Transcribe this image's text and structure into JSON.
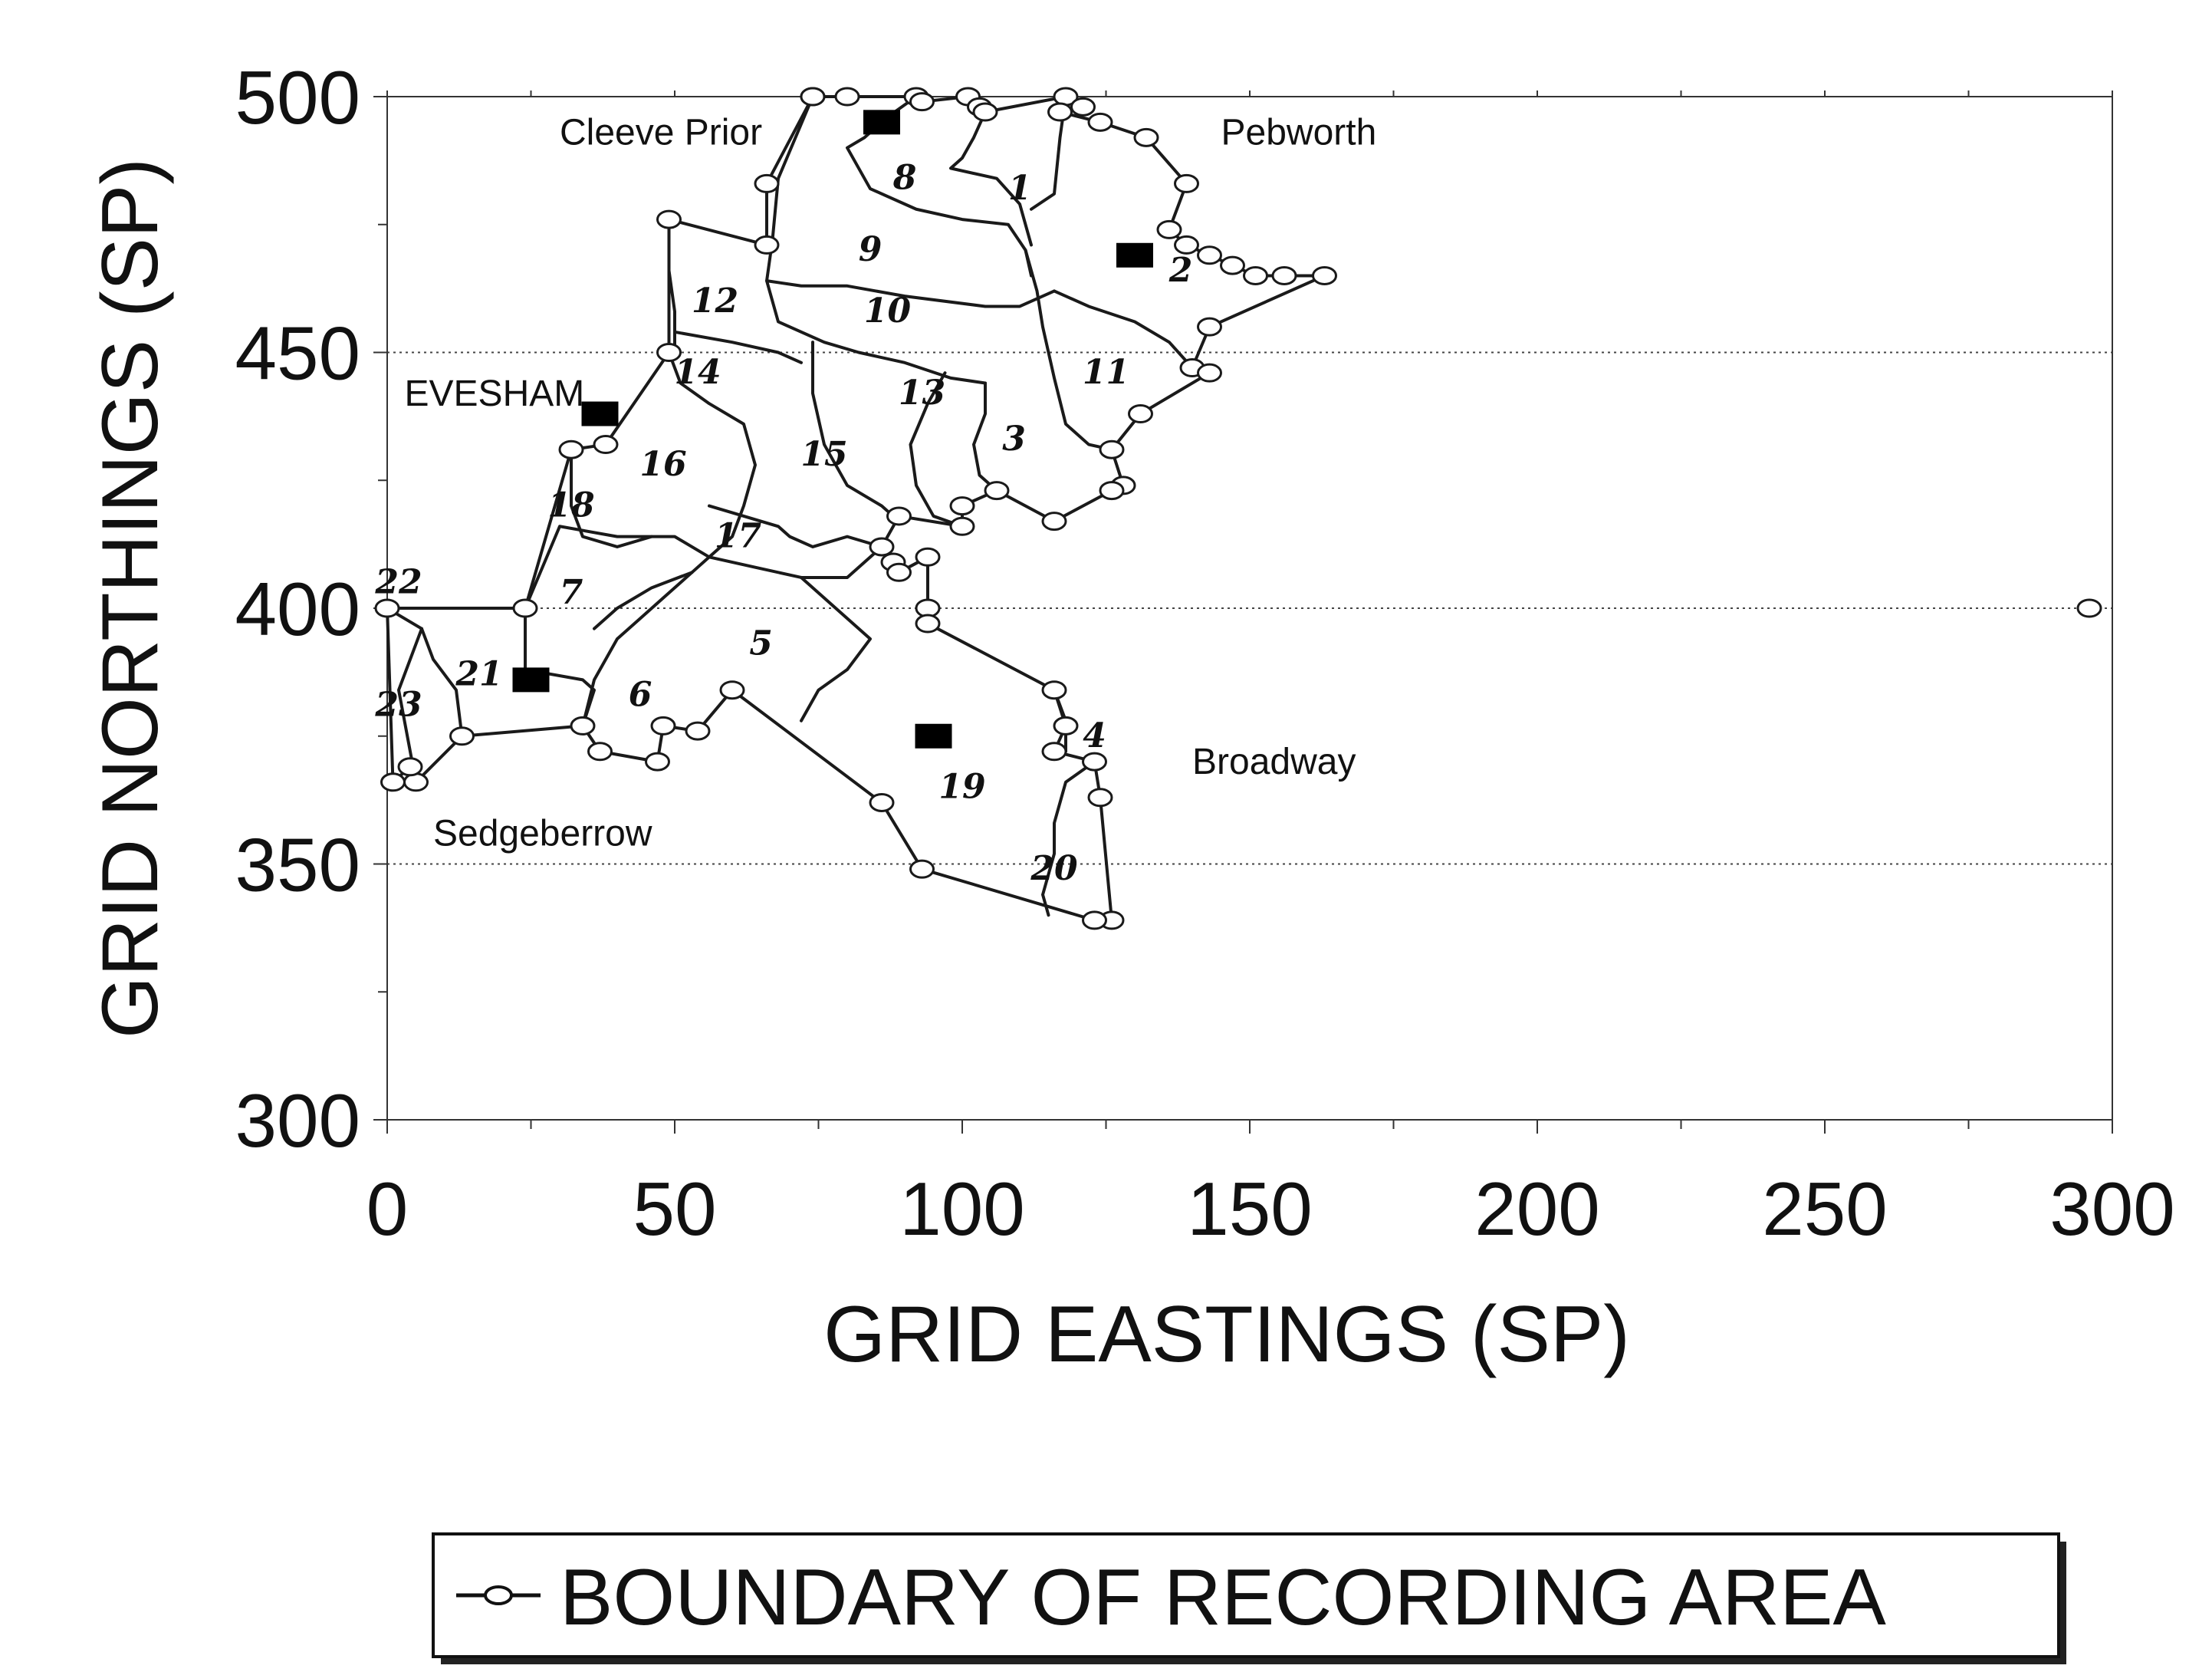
{
  "axes": {
    "x_title": "GRID EASTINGS (SP)",
    "y_title": "GRID NORTHINGS (SP)",
    "x_ticks": [
      "0",
      "50",
      "100",
      "150",
      "200",
      "250",
      "300"
    ],
    "y_ticks": [
      "300",
      "350",
      "400",
      "450",
      "500"
    ]
  },
  "place_labels": [
    {
      "name": "Cleeve Prior",
      "e": 30,
      "n": 493
    },
    {
      "name": "Pebworth",
      "e": 145,
      "n": 493
    },
    {
      "name": "EVESHAM",
      "e": 3,
      "n": 442
    },
    {
      "name": "Sedgeberrow",
      "e": 8,
      "n": 356
    },
    {
      "name": "Broadway",
      "e": 140,
      "n": 370
    }
  ],
  "area_labels": [
    {
      "text": "1",
      "e": 110,
      "n": 482
    },
    {
      "text": "2",
      "e": 138,
      "n": 466
    },
    {
      "text": "3",
      "e": 109,
      "n": 433
    },
    {
      "text": "4",
      "e": 123,
      "n": 375
    },
    {
      "text": "5",
      "e": 65,
      "n": 393
    },
    {
      "text": "6",
      "e": 44,
      "n": 383
    },
    {
      "text": "7",
      "e": 32,
      "n": 403
    },
    {
      "text": "8",
      "e": 90,
      "n": 484
    },
    {
      "text": "9",
      "e": 84,
      "n": 470
    },
    {
      "text": "10",
      "e": 87,
      "n": 458
    },
    {
      "text": "11",
      "e": 125,
      "n": 446
    },
    {
      "text": "12",
      "e": 57,
      "n": 460
    },
    {
      "text": "13",
      "e": 93,
      "n": 442
    },
    {
      "text": "14",
      "e": 54,
      "n": 446
    },
    {
      "text": "15",
      "e": 76,
      "n": 430
    },
    {
      "text": "16",
      "e": 48,
      "n": 428
    },
    {
      "text": "17",
      "e": 61,
      "n": 414
    },
    {
      "text": "18",
      "e": 32,
      "n": 420
    },
    {
      "text": "19",
      "e": 100,
      "n": 365
    },
    {
      "text": "20",
      "e": 116,
      "n": 349
    },
    {
      "text": "21",
      "e": 16,
      "n": 387
    },
    {
      "text": "22",
      "e": 2,
      "n": 405
    },
    {
      "text": "23",
      "e": 2,
      "n": 381
    }
  ],
  "filled_markers": [
    {
      "e": 86,
      "n": 495
    },
    {
      "e": 130,
      "n": 469
    },
    {
      "e": 37,
      "n": 438
    },
    {
      "e": 25,
      "n": 386
    },
    {
      "e": 95,
      "n": 375
    }
  ],
  "boundary_points": [
    [
      74,
      500
    ],
    [
      80,
      500
    ],
    [
      92,
      500
    ],
    [
      93,
      499
    ],
    [
      101,
      500
    ],
    [
      103,
      498
    ],
    [
      104,
      497
    ],
    [
      118,
      500
    ],
    [
      121,
      498
    ],
    [
      117,
      497
    ],
    [
      124,
      495
    ],
    [
      132,
      492
    ],
    [
      139,
      483
    ],
    [
      136,
      474
    ],
    [
      139,
      471
    ],
    [
      143,
      469
    ],
    [
      147,
      467
    ],
    [
      151,
      465
    ],
    [
      156,
      465
    ],
    [
      163,
      465
    ],
    [
      143,
      455
    ],
    [
      140,
      447
    ],
    [
      143,
      446
    ],
    [
      131,
      438
    ],
    [
      126,
      431
    ],
    [
      128,
      424
    ],
    [
      126,
      423
    ],
    [
      116,
      417
    ],
    [
      106,
      423
    ],
    [
      100,
      420
    ],
    [
      100,
      416
    ],
    [
      89,
      418
    ],
    [
      86,
      412
    ],
    [
      88,
      409
    ],
    [
      89,
      407
    ],
    [
      94,
      410
    ],
    [
      94,
      400
    ],
    [
      94,
      397
    ],
    [
      116,
      384
    ],
    [
      118,
      377
    ],
    [
      116,
      372
    ],
    [
      123,
      370
    ],
    [
      124,
      363
    ],
    [
      126,
      339
    ],
    [
      123,
      339
    ],
    [
      93,
      349
    ],
    [
      86,
      362
    ],
    [
      60,
      384
    ],
    [
      54,
      376
    ],
    [
      48,
      377
    ],
    [
      47,
      370
    ],
    [
      37,
      372
    ],
    [
      34,
      377
    ],
    [
      13,
      375
    ],
    [
      5,
      366
    ],
    [
      4,
      369
    ],
    [
      1,
      366
    ],
    [
      0,
      400
    ],
    [
      24,
      400
    ],
    [
      32,
      431
    ],
    [
      38,
      432
    ],
    [
      49,
      450
    ],
    [
      49,
      476
    ],
    [
      66,
      471
    ],
    [
      66,
      483
    ],
    [
      74,
      500
    ]
  ],
  "division_lines": [
    [
      [
        74,
        500
      ],
      [
        68,
        484
      ],
      [
        67,
        472
      ],
      [
        66,
        464
      ],
      [
        68,
        456
      ],
      [
        76,
        452
      ],
      [
        82,
        450
      ],
      [
        90,
        448
      ],
      [
        98,
        445
      ],
      [
        104,
        444
      ]
    ],
    [
      [
        92,
        500
      ],
      [
        87,
        496
      ],
      [
        83,
        492
      ],
      [
        80,
        490
      ],
      [
        84,
        482
      ],
      [
        92,
        478
      ],
      [
        100,
        476
      ],
      [
        108,
        475
      ],
      [
        111,
        470
      ],
      [
        112,
        465
      ]
    ],
    [
      [
        104,
        497
      ],
      [
        102,
        492
      ],
      [
        100,
        488
      ],
      [
        98,
        486
      ],
      [
        106,
        484
      ],
      [
        110,
        479
      ],
      [
        112,
        471
      ]
    ],
    [
      [
        118,
        500
      ],
      [
        117,
        492
      ],
      [
        116,
        481
      ],
      [
        112,
        478
      ]
    ],
    [
      [
        111,
        470
      ],
      [
        113,
        462
      ],
      [
        114,
        455
      ],
      [
        116,
        445
      ],
      [
        118,
        436
      ],
      [
        122,
        432
      ],
      [
        126,
        431
      ]
    ],
    [
      [
        116,
        462
      ],
      [
        122,
        459
      ],
      [
        130,
        456
      ],
      [
        136,
        452
      ],
      [
        140,
        447
      ]
    ],
    [
      [
        66,
        464
      ],
      [
        72,
        463
      ],
      [
        80,
        463
      ],
      [
        90,
        461
      ],
      [
        104,
        459
      ],
      [
        110,
        459
      ],
      [
        116,
        462
      ]
    ],
    [
      [
        49,
        476
      ],
      [
        49,
        466
      ],
      [
        50,
        458
      ],
      [
        50,
        450
      ]
    ],
    [
      [
        50,
        454
      ],
      [
        60,
        452
      ],
      [
        68,
        450
      ],
      [
        72,
        448
      ]
    ],
    [
      [
        74,
        452
      ],
      [
        74,
        442
      ],
      [
        76,
        432
      ],
      [
        80,
        424
      ],
      [
        86,
        420
      ],
      [
        88,
        418
      ]
    ],
    [
      [
        97,
        446
      ],
      [
        94,
        440
      ],
      [
        91,
        432
      ],
      [
        92,
        424
      ],
      [
        95,
        418
      ],
      [
        100,
        416
      ]
    ],
    [
      [
        104,
        444
      ],
      [
        104,
        438
      ],
      [
        102,
        432
      ],
      [
        103,
        426
      ],
      [
        106,
        423
      ]
    ],
    [
      [
        49,
        450
      ],
      [
        51,
        444
      ],
      [
        56,
        440
      ],
      [
        62,
        436
      ],
      [
        64,
        428
      ],
      [
        62,
        420
      ],
      [
        60,
        414
      ],
      [
        56,
        410
      ],
      [
        53,
        407
      ]
    ],
    [
      [
        53,
        407
      ],
      [
        46,
        404
      ],
      [
        40,
        400
      ],
      [
        36,
        396
      ]
    ],
    [
      [
        32,
        431
      ],
      [
        32,
        420
      ],
      [
        34,
        414
      ],
      [
        40,
        412
      ],
      [
        46,
        414
      ]
    ],
    [
      [
        24,
        400
      ],
      [
        30,
        416
      ],
      [
        40,
        414
      ],
      [
        50,
        414
      ],
      [
        56,
        410
      ]
    ],
    [
      [
        56,
        410
      ],
      [
        64,
        408
      ],
      [
        72,
        406
      ],
      [
        80,
        406
      ],
      [
        86,
        412
      ]
    ],
    [
      [
        72,
        406
      ],
      [
        78,
        400
      ],
      [
        84,
        394
      ],
      [
        80,
        388
      ],
      [
        75,
        384
      ],
      [
        72,
        378
      ]
    ],
    [
      [
        53,
        407
      ],
      [
        48,
        402
      ],
      [
        44,
        398
      ],
      [
        40,
        394
      ],
      [
        36,
        386
      ],
      [
        34,
        377
      ]
    ],
    [
      [
        0,
        400
      ],
      [
        6,
        396
      ],
      [
        8,
        390
      ],
      [
        12,
        384
      ],
      [
        13,
        375
      ]
    ],
    [
      [
        24,
        400
      ],
      [
        24,
        394
      ],
      [
        24,
        388
      ],
      [
        34,
        386
      ],
      [
        36,
        384
      ],
      [
        34,
        377
      ]
    ],
    [
      [
        6,
        396
      ],
      [
        4,
        390
      ],
      [
        2,
        384
      ],
      [
        3,
        378
      ],
      [
        5,
        366
      ]
    ],
    [
      [
        116,
        384
      ],
      [
        118,
        378
      ],
      [
        118,
        372
      ]
    ],
    [
      [
        123,
        370
      ],
      [
        118,
        366
      ],
      [
        116,
        358
      ],
      [
        116,
        352
      ],
      [
        114,
        344
      ],
      [
        115,
        340
      ]
    ],
    [
      [
        86,
        412
      ],
      [
        80,
        414
      ],
      [
        74,
        412
      ],
      [
        70,
        414
      ],
      [
        68,
        416
      ],
      [
        62,
        418
      ],
      [
        56,
        420
      ]
    ]
  ],
  "isolated_markers": [
    {
      "e": 296,
      "n": 400
    }
  ],
  "legend": {
    "label": "BOUNDARY OF RECORDING AREA"
  }
}
